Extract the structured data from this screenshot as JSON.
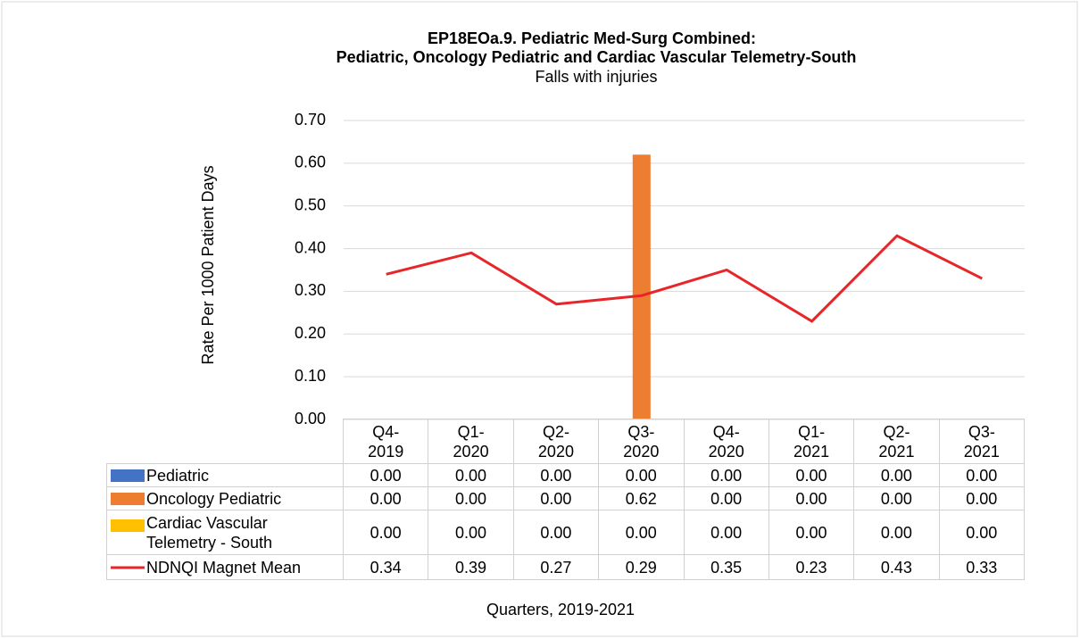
{
  "chart_data": {
    "type": "bar",
    "title": [
      "EP18EOa.9. Pediatric Med-Surg Combined:",
      "Pediatric, Oncology Pediatric and Cardiac Vascular Telemetry-South"
    ],
    "subtitle": "Falls with injuries",
    "y_label": "Rate Per 1000 Patient Days",
    "x_label": "Quarters, 2019-2021",
    "categories": [
      "Q4-2019",
      "Q1-2020",
      "Q2-2020",
      "Q3-2020",
      "Q4-2020",
      "Q1-2021",
      "Q2-2021",
      "Q3-2021"
    ],
    "ylim": [
      0,
      0.7
    ],
    "yticks": [
      {
        "value": 0,
        "label": "0.00"
      },
      {
        "value": 0.1,
        "label": "0.10"
      },
      {
        "value": 0.2,
        "label": "0.20"
      },
      {
        "value": 0.3,
        "label": "0.30"
      },
      {
        "value": 0.4,
        "label": "0.40"
      },
      {
        "value": 0.5,
        "label": "0.50"
      },
      {
        "value": 0.6,
        "label": "0.60"
      },
      {
        "value": 0.7,
        "label": "0.70"
      }
    ],
    "grid": true,
    "series": [
      {
        "name": "Pediatric",
        "type": "bar",
        "color": "#4472c4",
        "values": [
          0,
          0,
          0,
          0,
          0,
          0,
          0,
          0
        ],
        "value_labels": [
          "0.00",
          "0.00",
          "0.00",
          "0.00",
          "0.00",
          "0.00",
          "0.00",
          "0.00"
        ]
      },
      {
        "name": "Oncology Pediatric",
        "type": "bar",
        "color": "#ed7d31",
        "values": [
          0,
          0,
          0,
          0.62,
          0,
          0,
          0,
          0
        ],
        "value_labels": [
          "0.00",
          "0.00",
          "0.00",
          "0.62",
          "0.00",
          "0.00",
          "0.00",
          "0.00"
        ]
      },
      {
        "name": "Cardiac Vascular Telemetry - South",
        "type": "bar",
        "color": "#ffc000",
        "values": [
          0,
          0,
          0,
          0,
          0,
          0,
          0,
          0
        ],
        "value_labels": [
          "0.00",
          "0.00",
          "0.00",
          "0.00",
          "0.00",
          "0.00",
          "0.00",
          "0.00"
        ]
      },
      {
        "name": "NDNQI Magnet Mean",
        "type": "line",
        "color": "#e8262a",
        "values": [
          0.34,
          0.39,
          0.27,
          0.29,
          0.35,
          0.23,
          0.43,
          0.33
        ]
      }
    ]
  }
}
